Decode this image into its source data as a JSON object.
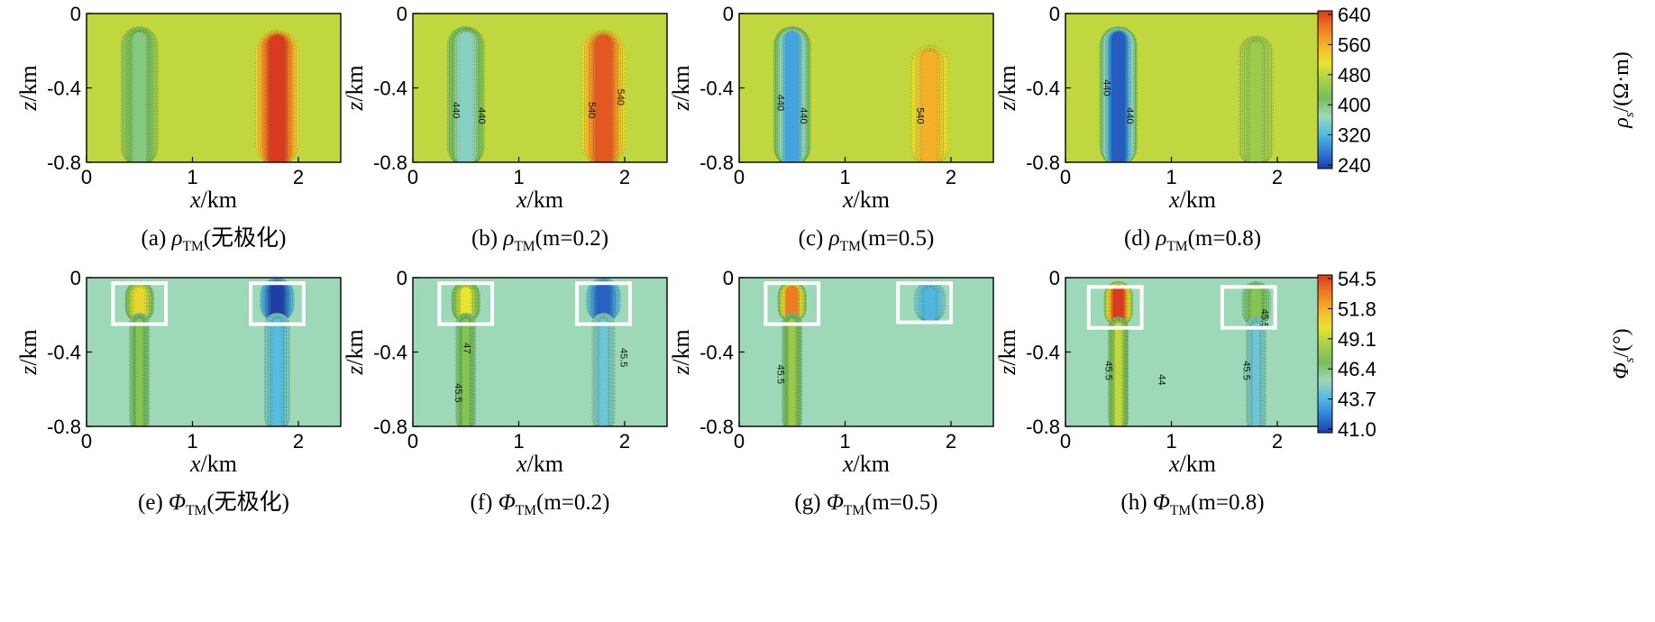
{
  "chart_data": [
    {
      "type": "heatmap",
      "id": "a",
      "row": "rho",
      "caption": {
        "prefix": "(a) ",
        "sym": "ρ",
        "sub": "TM",
        "suffix": "(无极化)"
      },
      "xlabel": "x/km",
      "ylabel": "z/km",
      "xlim": [
        0,
        2.4
      ],
      "ylim": [
        -0.8,
        0
      ],
      "xticks": [
        "0",
        "1",
        "2"
      ],
      "yticks": [
        "0",
        "-0.4",
        "-0.8"
      ],
      "background": 480,
      "anomalies": [
        {
          "x": 0.5,
          "halfwidth": 0.13,
          "z_top": -0.1,
          "z_bottom": -0.8,
          "value": 400
        },
        {
          "x": 1.8,
          "halfwidth": 0.15,
          "z_top": -0.12,
          "z_bottom": -0.8,
          "value": 640
        }
      ],
      "contour_labels": [],
      "boxes": []
    },
    {
      "type": "heatmap",
      "id": "b",
      "row": "rho",
      "caption": {
        "prefix": "(b) ",
        "sym": "ρ",
        "sub": "TM",
        "suffix": "(m=0.2)"
      },
      "xlabel": "x/km",
      "ylabel": "z/km",
      "xlim": [
        0,
        2.4
      ],
      "ylim": [
        -0.8,
        0
      ],
      "xticks": [
        "0",
        "1",
        "2"
      ],
      "yticks": [
        "0",
        "-0.4",
        "-0.8"
      ],
      "background": 480,
      "anomalies": [
        {
          "x": 0.5,
          "halfwidth": 0.13,
          "z_top": -0.1,
          "z_bottom": -0.8,
          "value": 360
        },
        {
          "x": 1.8,
          "halfwidth": 0.15,
          "z_top": -0.12,
          "z_bottom": -0.8,
          "value": 620
        }
      ],
      "contour_labels": [
        {
          "text": "440",
          "x": 0.38,
          "z": -0.52
        },
        {
          "text": "440",
          "x": 0.62,
          "z": -0.55
        },
        {
          "text": "540",
          "x": 1.66,
          "z": -0.52
        },
        {
          "text": "540",
          "x": 1.93,
          "z": -0.45
        }
      ],
      "boxes": []
    },
    {
      "type": "heatmap",
      "id": "c",
      "row": "rho",
      "caption": {
        "prefix": "(c) ",
        "sym": "ρ",
        "sub": "TM",
        "suffix": "(m=0.5)"
      },
      "xlabel": "x/km",
      "ylabel": "z/km",
      "xlim": [
        0,
        2.4
      ],
      "ylim": [
        -0.8,
        0
      ],
      "xticks": [
        "0",
        "1",
        "2"
      ],
      "yticks": [
        "0",
        "-0.4",
        "-0.8"
      ],
      "background": 480,
      "anomalies": [
        {
          "x": 0.5,
          "halfwidth": 0.13,
          "z_top": -0.1,
          "z_bottom": -0.8,
          "value": 310
        },
        {
          "x": 1.8,
          "halfwidth": 0.14,
          "z_top": -0.2,
          "z_bottom": -0.8,
          "value": 555
        }
      ],
      "contour_labels": [
        {
          "text": "440",
          "x": 0.36,
          "z": -0.48
        },
        {
          "text": "440",
          "x": 0.58,
          "z": -0.55
        },
        {
          "text": "540",
          "x": 1.68,
          "z": -0.55
        }
      ],
      "boxes": []
    },
    {
      "type": "heatmap",
      "id": "d",
      "row": "rho",
      "caption": {
        "prefix": "(d) ",
        "sym": "ρ",
        "sub": "TM",
        "suffix": "(m=0.8)"
      },
      "xlabel": "x/km",
      "ylabel": "z/km",
      "xlim": [
        0,
        2.4
      ],
      "ylim": [
        -0.8,
        0
      ],
      "xticks": [
        "0",
        "1",
        "2"
      ],
      "yticks": [
        "0",
        "-0.4",
        "-0.8"
      ],
      "background": 480,
      "anomalies": [
        {
          "x": 0.5,
          "halfwidth": 0.13,
          "z_top": -0.1,
          "z_bottom": -0.8,
          "value": 260
        },
        {
          "x": 1.8,
          "halfwidth": 0.12,
          "z_top": -0.15,
          "z_bottom": -0.8,
          "value": 450
        }
      ],
      "contour_labels": [
        {
          "text": "440",
          "x": 0.36,
          "z": -0.4
        },
        {
          "text": "440",
          "x": 0.58,
          "z": -0.55
        }
      ],
      "boxes": []
    },
    {
      "type": "heatmap",
      "id": "e",
      "row": "phi",
      "caption": {
        "prefix": "(e) ",
        "sym": "Φ",
        "sub": "TM",
        "suffix": "(无极化)"
      },
      "xlabel": "x/km",
      "ylabel": "z/km",
      "xlim": [
        0,
        2.4
      ],
      "ylim": [
        -0.8,
        0
      ],
      "xticks": [
        "0",
        "1",
        "2"
      ],
      "yticks": [
        "0",
        "-0.4",
        "-0.8"
      ],
      "background": 45.5,
      "anomalies": [
        {
          "x": 0.5,
          "halfwidth": 0.1,
          "z_top": -0.05,
          "z_bottom": -0.22,
          "value": 50.5
        },
        {
          "x": 0.5,
          "halfwidth": 0.07,
          "z_top": -0.22,
          "z_bottom": -0.8,
          "value": 47.5
        },
        {
          "x": 1.8,
          "halfwidth": 0.12,
          "z_top": -0.03,
          "z_bottom": -0.22,
          "value": 41.0
        },
        {
          "x": 1.8,
          "halfwidth": 0.09,
          "z_top": -0.22,
          "z_bottom": -0.8,
          "value": 44.0
        }
      ],
      "contour_labels": [],
      "boxes": [
        {
          "x0": 0.25,
          "x1": 0.75,
          "z0": -0.03,
          "z1": -0.25
        },
        {
          "x0": 1.55,
          "x1": 2.05,
          "z0": -0.03,
          "z1": -0.25
        }
      ]
    },
    {
      "type": "heatmap",
      "id": "f",
      "row": "phi",
      "caption": {
        "prefix": "(f) ",
        "sym": "Φ",
        "sub": "TM",
        "suffix": "(m=0.2)"
      },
      "xlabel": "x/km",
      "ylabel": "z/km",
      "xlim": [
        0,
        2.4
      ],
      "ylim": [
        -0.8,
        0
      ],
      "xticks": [
        "0",
        "1",
        "2"
      ],
      "yticks": [
        "0",
        "-0.4",
        "-0.8"
      ],
      "background": 45.5,
      "anomalies": [
        {
          "x": 0.5,
          "halfwidth": 0.1,
          "z_top": -0.05,
          "z_bottom": -0.22,
          "value": 50.0
        },
        {
          "x": 0.5,
          "halfwidth": 0.07,
          "z_top": -0.22,
          "z_bottom": -0.8,
          "value": 47.5
        },
        {
          "x": 1.8,
          "halfwidth": 0.12,
          "z_top": -0.03,
          "z_bottom": -0.22,
          "value": 41.8
        },
        {
          "x": 1.8,
          "halfwidth": 0.08,
          "z_top": -0.22,
          "z_bottom": -0.8,
          "value": 44.5
        }
      ],
      "contour_labels": [
        {
          "text": "47",
          "x": 0.48,
          "z": -0.38
        },
        {
          "text": "45.5",
          "x": 0.4,
          "z": -0.62
        },
        {
          "text": "45.5",
          "x": 1.96,
          "z": -0.43
        }
      ],
      "boxes": [
        {
          "x0": 0.25,
          "x1": 0.75,
          "z0": -0.03,
          "z1": -0.25
        },
        {
          "x0": 1.55,
          "x1": 2.05,
          "z0": -0.03,
          "z1": -0.25
        }
      ]
    },
    {
      "type": "heatmap",
      "id": "g",
      "row": "phi",
      "caption": {
        "prefix": "(g) ",
        "sym": "Φ",
        "sub": "TM",
        "suffix": "(m=0.5)"
      },
      "xlabel": "x/km",
      "ylabel": "z/km",
      "xlim": [
        0,
        2.4
      ],
      "ylim": [
        -0.8,
        0
      ],
      "xticks": [
        "0",
        "1",
        "2"
      ],
      "yticks": [
        "0",
        "-0.4",
        "-0.8"
      ],
      "background": 45.5,
      "anomalies": [
        {
          "x": 0.5,
          "halfwidth": 0.1,
          "z_top": -0.05,
          "z_bottom": -0.22,
          "value": 53.0
        },
        {
          "x": 0.5,
          "halfwidth": 0.07,
          "z_top": -0.22,
          "z_bottom": -0.8,
          "value": 48.0
        },
        {
          "x": 1.8,
          "halfwidth": 0.11,
          "z_top": -0.05,
          "z_bottom": -0.22,
          "value": 43.8
        }
      ],
      "contour_labels": [
        {
          "text": "45.5",
          "x": 0.36,
          "z": -0.52
        }
      ],
      "boxes": [
        {
          "x0": 0.25,
          "x1": 0.75,
          "z0": -0.03,
          "z1": -0.25
        },
        {
          "x0": 1.5,
          "x1": 2.0,
          "z0": -0.03,
          "z1": -0.24
        }
      ]
    },
    {
      "type": "heatmap",
      "id": "h",
      "row": "phi",
      "caption": {
        "prefix": "(h) ",
        "sym": "Φ",
        "sub": "TM",
        "suffix": "(m=0.8)"
      },
      "xlabel": "x/km",
      "ylabel": "z/km",
      "xlim": [
        0,
        2.4
      ],
      "ylim": [
        -0.8,
        0
      ],
      "xticks": [
        "0",
        "1",
        "2"
      ],
      "yticks": [
        "0",
        "-0.4",
        "-0.8"
      ],
      "background": 45.5,
      "anomalies": [
        {
          "x": 0.5,
          "halfwidth": 0.1,
          "z_top": -0.05,
          "z_bottom": -0.24,
          "value": 54.5
        },
        {
          "x": 0.5,
          "halfwidth": 0.07,
          "z_top": -0.24,
          "z_bottom": -0.8,
          "value": 49.0
        },
        {
          "x": 1.8,
          "halfwidth": 0.1,
          "z_top": -0.05,
          "z_bottom": -0.24,
          "value": 47.5
        },
        {
          "x": 1.8,
          "halfwidth": 0.07,
          "z_top": -0.24,
          "z_bottom": -0.8,
          "value": 44.5
        }
      ],
      "contour_labels": [
        {
          "text": "45.5",
          "x": 0.38,
          "z": -0.5
        },
        {
          "text": "44",
          "x": 0.88,
          "z": -0.55
        },
        {
          "text": "45.5",
          "x": 1.68,
          "z": -0.5
        },
        {
          "text": "45.5",
          "x": 1.85,
          "z": -0.22
        }
      ],
      "boxes": [
        {
          "x0": 0.22,
          "x1": 0.72,
          "z0": -0.05,
          "z1": -0.27
        },
        {
          "x0": 1.48,
          "x1": 1.98,
          "z0": -0.05,
          "z1": -0.27
        }
      ]
    }
  ],
  "colorbars": [
    {
      "id": "rho",
      "title": {
        "sym": "ρ",
        "sub": "s",
        "suffix": "/(Ω·m)"
      },
      "min": 240,
      "max": 640,
      "ticks": [
        "640",
        "560",
        "480",
        "400",
        "320",
        "240"
      ]
    },
    {
      "id": "phi",
      "title": {
        "sym": "Φ",
        "sub": "s",
        "suffix": "/(°)"
      },
      "min": 41.0,
      "max": 54.5,
      "ticks": [
        "54.5",
        "51.8",
        "49.1",
        "46.4",
        "43.7",
        "41.0"
      ]
    }
  ],
  "colors": {
    "palette": [
      "#1f3fa6",
      "#2f7fd8",
      "#55bde0",
      "#9dd8b8",
      "#76bd5a",
      "#a7cf4a",
      "#e8e430",
      "#f5b52a",
      "#ef7b22",
      "#d93a20"
    ],
    "box": "#ffffff"
  }
}
